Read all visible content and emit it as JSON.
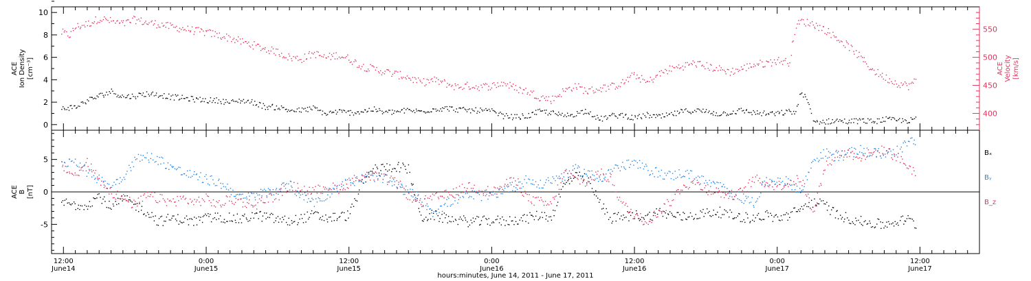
{
  "colors": {
    "black": "#000000",
    "pink": "#e0335e",
    "blue": "#1f86e8"
  },
  "chart_data": [
    {
      "type": "scatter",
      "panel": "top",
      "ylabel_left": [
        "ACE",
        "Ion Density",
        "[cm⁻³]"
      ],
      "ylabel_right": [
        "ACE",
        "Velocity",
        "[km/s]"
      ],
      "ylim_left": [
        -0.5,
        10.5
      ],
      "ylim_right": [
        370,
        590
      ],
      "yticks_left": [
        "0",
        "2",
        "4",
        "6",
        "8",
        "10"
      ],
      "yticks_right": [
        "400",
        "450",
        "500",
        "550"
      ],
      "x_unit": "hours since June 14, 2011 00:00",
      "series": [
        {
          "axis": "right",
          "color": "#e0335e",
          "x": [
            11.8,
            12.5,
            13.0,
            14.0,
            15.0,
            16.0,
            17.0,
            18.0,
            19.0,
            20.0,
            21.0,
            22.0,
            23.0,
            24.0,
            25.0,
            26.0,
            27.0,
            28.0,
            29.0,
            30.0,
            31.0,
            32.0,
            33.0,
            34.0,
            35.0,
            36.0,
            37.0,
            38.0,
            39.0,
            40.0,
            41.0,
            42.0,
            43.0,
            44.0,
            45.0,
            46.0,
            47.0,
            48.0,
            49.0,
            50.0,
            51.0,
            52.0,
            53.0,
            54.0,
            55.0,
            56.0,
            57.0,
            58.0,
            59.0,
            60.0,
            61.0,
            62.0,
            63.0,
            64.0,
            65.0,
            66.0,
            67.0,
            68.0,
            69.0,
            70.0,
            71.0,
            72.0,
            73.0,
            73.5,
            74.0,
            75.0,
            76.0,
            77.0,
            78.0,
            79.0,
            80.0,
            81.0,
            82.0,
            83.0,
            83.6
          ],
          "values": [
            545,
            540,
            555,
            560,
            570,
            565,
            560,
            568,
            562,
            560,
            555,
            552,
            548,
            545,
            540,
            535,
            528,
            522,
            515,
            510,
            500,
            498,
            508,
            500,
            505,
            498,
            485,
            480,
            475,
            470,
            465,
            455,
            460,
            455,
            448,
            450,
            448,
            450,
            455,
            445,
            440,
            430,
            425,
            440,
            450,
            440,
            445,
            448,
            455,
            470,
            455,
            470,
            480,
            485,
            490,
            485,
            480,
            475,
            480,
            488,
            490,
            495,
            492,
            555,
            565,
            560,
            550,
            535,
            520,
            500,
            478,
            465,
            455,
            450,
            458
          ]
        },
        {
          "axis": "left",
          "color": "#000000",
          "x": [
            11.8,
            13.0,
            14.0,
            15.0,
            16.0,
            17.0,
            18.0,
            19.0,
            20.0,
            21.0,
            22.0,
            23.0,
            24.0,
            25.0,
            26.0,
            27.0,
            28.0,
            29.0,
            30.0,
            31.0,
            32.0,
            33.0,
            34.0,
            35.0,
            36.0,
            37.0,
            38.0,
            39.0,
            40.0,
            41.0,
            42.0,
            43.0,
            44.0,
            45.0,
            46.0,
            47.0,
            48.0,
            49.0,
            50.0,
            51.0,
            52.0,
            53.0,
            54.0,
            55.0,
            56.0,
            57.0,
            58.0,
            59.0,
            60.0,
            61.0,
            62.0,
            63.0,
            64.0,
            65.0,
            66.0,
            67.0,
            68.0,
            69.0,
            70.0,
            71.0,
            72.0,
            73.0,
            73.5,
            74.0,
            74.5,
            75.0,
            76.0,
            77.0,
            78.0,
            79.0,
            80.0,
            81.0,
            82.0,
            83.0,
            83.6
          ],
          "values": [
            1.5,
            1.6,
            2.2,
            2.6,
            3.0,
            2.5,
            2.6,
            2.8,
            2.7,
            2.5,
            2.4,
            2.3,
            2.2,
            2.2,
            2.0,
            2.2,
            2.0,
            1.6,
            1.6,
            1.3,
            1.3,
            1.5,
            1.0,
            1.2,
            1.1,
            1.2,
            1.4,
            1.1,
            1.2,
            1.3,
            1.2,
            1.4,
            1.5,
            1.4,
            1.3,
            1.3,
            1.2,
            0.8,
            0.7,
            0.8,
            1.2,
            1.1,
            0.8,
            1.0,
            1.3,
            0.5,
            0.8,
            0.9,
            0.6,
            0.9,
            0.7,
            0.9,
            1.2,
            1.3,
            1.2,
            1.0,
            1.1,
            1.3,
            1.1,
            1.0,
            1.0,
            1.2,
            1.1,
            3.0,
            2.2,
            0.3,
            0.3,
            0.4,
            0.3,
            0.4,
            0.3,
            0.5,
            0.4,
            0.4,
            0.5
          ]
        }
      ]
    },
    {
      "type": "scatter",
      "panel": "bottom",
      "ylabel": [
        "ACE",
        "B",
        "[nT]"
      ],
      "ylim": [
        -9.5,
        9.5
      ],
      "yticks": [
        "-5",
        "0",
        "5"
      ],
      "x_unit": "hours since June 14, 2011 00:00",
      "legend": [
        "Bx",
        "By",
        "Bz"
      ],
      "series": [
        {
          "name": "Bx",
          "color": "#000000",
          "x": [
            11.8,
            13.0,
            14.0,
            15.0,
            16.0,
            17.0,
            18.0,
            19.0,
            20.0,
            21.0,
            22.0,
            23.0,
            24.0,
            25.0,
            26.0,
            27.0,
            28.0,
            29.0,
            30.0,
            31.0,
            32.0,
            33.0,
            34.0,
            35.0,
            36.0,
            37.0,
            38.0,
            39.0,
            40.0,
            41.0,
            42.0,
            43.0,
            44.0,
            45.0,
            46.0,
            47.0,
            48.0,
            49.0,
            50.0,
            51.0,
            52.0,
            53.0,
            54.0,
            55.0,
            56.0,
            57.0,
            58.0,
            59.0,
            60.0,
            61.0,
            62.0,
            63.0,
            64.0,
            65.0,
            66.0,
            67.0,
            68.0,
            69.0,
            70.0,
            71.0,
            72.0,
            73.0,
            74.0,
            75.0,
            76.0,
            77.0,
            78.0,
            79.0,
            80.0,
            81.0,
            82.0,
            83.0,
            83.6
          ],
          "values": [
            -1.5,
            -2.0,
            -1.8,
            -0.5,
            -2.5,
            -1.0,
            -2.0,
            -3.0,
            -4.5,
            -4.0,
            -4.2,
            -4.5,
            -4.0,
            -3.8,
            -4.0,
            -4.2,
            -3.5,
            -3.8,
            -4.2,
            -4.5,
            -4.0,
            -3.5,
            -4.0,
            -3.8,
            -3.5,
            1.0,
            3.5,
            3.8,
            4.0,
            3.5,
            -4.0,
            -3.5,
            -4.0,
            -4.2,
            -4.5,
            -4.5,
            -4.3,
            -4.5,
            -4.2,
            -4.0,
            -3.5,
            -3.8,
            1.0,
            2.5,
            2.0,
            -1.5,
            -4.0,
            -3.8,
            -3.5,
            -3.8,
            -3.0,
            -3.5,
            -3.8,
            -3.5,
            -3.2,
            -3.0,
            -3.5,
            -3.8,
            -4.0,
            -3.5,
            -4.0,
            -3.5,
            -2.5,
            -1.5,
            -2.0,
            -3.5,
            -4.0,
            -4.5,
            -4.8,
            -5.0,
            -4.5,
            -4.2,
            -5.0
          ]
        },
        {
          "name": "By",
          "color": "#1f86e8",
          "x": [
            11.8,
            13.0,
            14.0,
            15.0,
            16.0,
            17.0,
            18.0,
            19.0,
            20.0,
            21.0,
            22.0,
            23.0,
            24.0,
            25.0,
            26.0,
            27.0,
            28.0,
            29.0,
            30.0,
            31.0,
            32.0,
            33.0,
            34.0,
            35.0,
            36.0,
            37.0,
            38.0,
            39.0,
            40.0,
            41.0,
            42.0,
            43.0,
            44.0,
            45.0,
            46.0,
            47.0,
            48.0,
            49.0,
            50.0,
            51.0,
            52.0,
            53.0,
            54.0,
            55.0,
            56.0,
            57.0,
            58.0,
            59.0,
            60.0,
            61.0,
            62.0,
            63.0,
            64.0,
            65.0,
            66.0,
            67.0,
            68.0,
            69.0,
            70.0,
            71.0,
            72.0,
            73.0,
            74.0,
            75.0,
            76.0,
            77.0,
            78.0,
            79.0,
            80.0,
            81.0,
            82.0,
            83.0,
            83.6
          ],
          "values": [
            4.5,
            5.0,
            3.0,
            2.0,
            1.0,
            2.5,
            5.0,
            5.5,
            5.0,
            4.0,
            3.0,
            2.5,
            2.0,
            1.5,
            0.5,
            -1.0,
            -0.5,
            0.0,
            0.5,
            1.0,
            -0.5,
            -1.5,
            -0.5,
            1.0,
            1.5,
            2.0,
            2.5,
            2.0,
            1.0,
            0.0,
            -1.0,
            -3.0,
            -2.0,
            -1.0,
            -0.5,
            -0.5,
            -0.5,
            0.5,
            1.0,
            2.0,
            1.0,
            2.0,
            2.5,
            3.5,
            3.0,
            2.0,
            3.5,
            4.0,
            4.5,
            3.5,
            3.0,
            2.5,
            3.0,
            2.5,
            1.5,
            1.0,
            0.0,
            -1.0,
            -1.5,
            1.5,
            2.0,
            1.5,
            0.0,
            5.0,
            6.0,
            5.5,
            6.0,
            6.5,
            6.0,
            6.0,
            6.5,
            7.5,
            8.0
          ]
        },
        {
          "name": "Bz",
          "color": "#e0335e",
          "x": [
            11.8,
            13.0,
            14.0,
            15.0,
            16.0,
            17.0,
            18.0,
            19.0,
            20.0,
            21.0,
            22.0,
            23.0,
            24.0,
            25.0,
            26.0,
            27.0,
            28.0,
            29.0,
            30.0,
            31.0,
            32.0,
            33.0,
            34.0,
            35.0,
            36.0,
            37.0,
            38.0,
            39.0,
            40.0,
            41.0,
            42.0,
            43.0,
            44.0,
            45.0,
            46.0,
            47.0,
            48.0,
            49.0,
            50.0,
            51.0,
            52.0,
            53.0,
            54.0,
            55.0,
            56.0,
            57.0,
            58.0,
            59.0,
            60.0,
            61.0,
            62.0,
            63.0,
            64.0,
            65.0,
            66.0,
            67.0,
            68.0,
            69.0,
            70.0,
            71.0,
            72.0,
            73.0,
            74.0,
            75.0,
            76.0,
            77.0,
            78.0,
            79.0,
            80.0,
            81.0,
            82.0,
            83.0,
            83.6
          ],
          "values": [
            4.0,
            2.5,
            4.5,
            2.0,
            0.0,
            -1.0,
            -2.0,
            -0.5,
            -1.0,
            -1.5,
            -1.0,
            -1.5,
            -1.0,
            -2.0,
            -1.0,
            -1.5,
            -2.0,
            -1.0,
            -0.5,
            1.0,
            0.5,
            0.0,
            1.0,
            0.5,
            1.5,
            2.5,
            2.5,
            2.0,
            1.5,
            -0.5,
            -1.5,
            -1.0,
            -0.5,
            0.0,
            1.0,
            0.5,
            0.0,
            1.0,
            2.0,
            -1.0,
            -1.5,
            -2.0,
            3.0,
            2.0,
            1.5,
            3.0,
            2.0,
            -2.0,
            -3.5,
            -4.5,
            -3.0,
            -1.5,
            1.0,
            1.5,
            0.5,
            0.0,
            -0.5,
            0.0,
            2.0,
            1.5,
            1.0,
            1.5,
            2.0,
            -3.0,
            4.0,
            6.0,
            6.0,
            5.5,
            6.0,
            6.5,
            5.5,
            4.0,
            3.0
          ]
        }
      ]
    }
  ],
  "xaxis": {
    "ticks": [
      {
        "hour": 12,
        "top": "12:00",
        "bottom": "June14"
      },
      {
        "hour": 24,
        "top": "0:00",
        "bottom": "June15"
      },
      {
        "hour": 36,
        "top": "12:00",
        "bottom": "June15"
      },
      {
        "hour": 48,
        "top": "0:00",
        "bottom": "June16"
      },
      {
        "hour": 60,
        "top": "12:00",
        "bottom": "June16"
      },
      {
        "hour": 72,
        "top": "0:00",
        "bottom": "June17"
      },
      {
        "hour": 84,
        "top": "12:00",
        "bottom": "June17"
      }
    ],
    "xlim": [
      11,
      89
    ],
    "title": "hours:minutes, June 14, 2011 - June 17, 2011"
  },
  "labels": {
    "density": [
      "ACE",
      "Ion Density",
      "[cm⁻³]"
    ],
    "velocity": [
      "ACE",
      "Velocity",
      "[km/s]"
    ],
    "bfield": [
      "ACE",
      "B",
      "[nT]"
    ],
    "legend": {
      "bx": "Bₓ",
      "by": "Bᵧ",
      "bz": "B_z"
    }
  }
}
